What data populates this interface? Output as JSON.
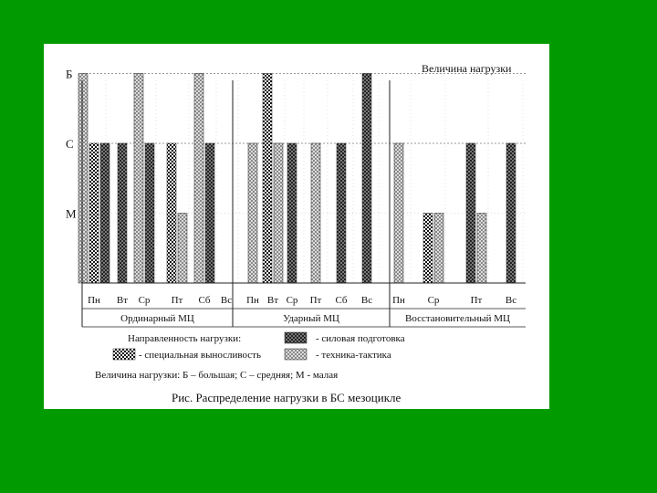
{
  "slide": {
    "background_color": "#019b01",
    "card_color": "#ffffff"
  },
  "chart_data": {
    "type": "bar",
    "title": "",
    "ylabel": "Величина нагрузки",
    "y_levels": [
      "М",
      "С",
      "Б"
    ],
    "y_level_values": {
      "М": 1,
      "С": 2,
      "Б": 3
    },
    "ylim": [
      0,
      3
    ],
    "grid": "dotted horizontal lines at С and Б levels; vertical dividers between days",
    "series": [
      {
        "name": "специальная выносливость",
        "pattern": "checker-dense"
      },
      {
        "name": "техника-тактика",
        "pattern": "crosshatch-light"
      },
      {
        "name": "силовая подготовка",
        "pattern": "crosshatch-dark"
      }
    ],
    "groups": [
      {
        "name": "Ординарный МЦ",
        "days": [
          {
            "day": "Пн",
            "bars": [
              {
                "series": "техника-тактика",
                "value": 3
              },
              {
                "series": "специальная выносливость",
                "value": 2
              },
              {
                "series": "силовая подготовка",
                "value": 2
              }
            ]
          },
          {
            "day": "Вт",
            "bars": [
              {
                "series": "силовая подготовка",
                "value": 2
              }
            ]
          },
          {
            "day": "Ср",
            "bars": [
              {
                "series": "техника-тактика",
                "value": 3
              },
              {
                "series": "силовая подготовка",
                "value": 2
              }
            ]
          },
          {
            "day": "Пт",
            "bars": [
              {
                "series": "специальная выносливость",
                "value": 2
              },
              {
                "series": "техника-тактика",
                "value": 1
              }
            ]
          },
          {
            "day": "Сб",
            "bars": [
              {
                "series": "техника-тактика",
                "value": 3
              },
              {
                "series": "силовая подготовка",
                "value": 2
              }
            ]
          },
          {
            "day": "Вс",
            "bars": []
          }
        ]
      },
      {
        "name": "Ударный МЦ",
        "days": [
          {
            "day": "Пн",
            "bars": [
              {
                "series": "техника-тактика",
                "value": 2
              }
            ]
          },
          {
            "day": "Вт",
            "bars": [
              {
                "series": "специальная выносливость",
                "value": 3
              },
              {
                "series": "техника-тактика",
                "value": 2
              }
            ]
          },
          {
            "day": "Ср",
            "bars": [
              {
                "series": "силовая подготовка",
                "value": 2
              }
            ]
          },
          {
            "day": "Пт",
            "bars": [
              {
                "series": "техника-тактика",
                "value": 2
              }
            ]
          },
          {
            "day": "Сб",
            "bars": [
              {
                "series": "силовая подготовка",
                "value": 2
              }
            ]
          },
          {
            "day": "Вс",
            "bars": [
              {
                "series": "силовая подготовка",
                "value": 3
              }
            ]
          }
        ]
      },
      {
        "name": "Восстановительный МЦ",
        "days": [
          {
            "day": "Пн",
            "bars": [
              {
                "series": "техника-тактика",
                "value": 2
              }
            ]
          },
          {
            "day": "Ср",
            "bars": [
              {
                "series": "специальная выносливость",
                "value": 1
              },
              {
                "series": "техника-тактика",
                "value": 1
              }
            ]
          },
          {
            "day": "Пт",
            "bars": [
              {
                "series": "силовая подготовка",
                "value": 2
              },
              {
                "series": "техника-тактика",
                "value": 1
              }
            ]
          },
          {
            "day": "Вс",
            "bars": [
              {
                "series": "силовая подготовка",
                "value": 2
              }
            ]
          }
        ]
      }
    ]
  },
  "legend": {
    "heading": "Направленность нагрузки:",
    "items": [
      {
        "series": "силовая подготовка",
        "label": "- силовая подготовка"
      },
      {
        "series": "специальная выносливость",
        "label": "- специальная выносливость"
      },
      {
        "series": "техника-тактика",
        "label": "- техника-тактика"
      }
    ],
    "level_note": "Величина нагрузки:  Б – большая;  С – средняя;  М - малая"
  },
  "caption": "Рис.  Распределение нагрузки в БС мезоцикле"
}
